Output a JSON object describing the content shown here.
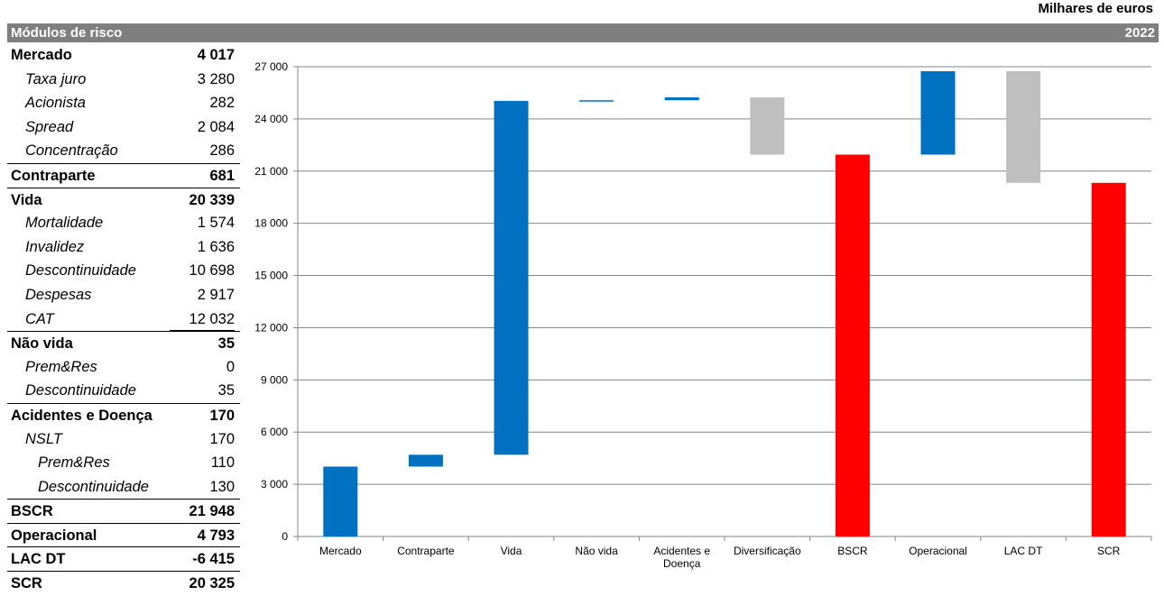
{
  "header": {
    "units": "Milhares de euros",
    "module_title": "Módulos de risco",
    "year": "2022"
  },
  "table": [
    {
      "label": "Mercado",
      "value": "4 017",
      "style": "bold",
      "indent": 0
    },
    {
      "label": "Taxa juro",
      "value": "3 280",
      "style": "italic",
      "indent": 1
    },
    {
      "label": "Acionista",
      "value": "282",
      "style": "italic",
      "indent": 1
    },
    {
      "label": "Spread",
      "value": "2 084",
      "style": "italic",
      "indent": 1
    },
    {
      "label": "Concentração",
      "value": "286",
      "style": "italic",
      "indent": 1
    },
    {
      "label": "Contraparte",
      "value": "681",
      "style": "bold",
      "indent": 0
    },
    {
      "label": "Vida",
      "value": "20 339",
      "style": "bold",
      "indent": 0
    },
    {
      "label": "Mortalidade",
      "value": "1 574",
      "style": "italic",
      "indent": 1
    },
    {
      "label": "Invalidez",
      "value": "1 636",
      "style": "italic",
      "indent": 1
    },
    {
      "label": "Descontinuidade",
      "value": "10 698",
      "style": "italic",
      "indent": 1
    },
    {
      "label": "Despesas",
      "value": "2 917",
      "style": "italic",
      "indent": 1
    },
    {
      "label": "CAT",
      "value": "12 032",
      "style": "italic",
      "indent": 1
    },
    {
      "label": "Não vida",
      "value": "35",
      "style": "bold",
      "indent": 0
    },
    {
      "label": "Prem&Res",
      "value": "0",
      "style": "italic",
      "indent": 1
    },
    {
      "label": "Descontinuidade",
      "value": "35",
      "style": "italic",
      "indent": 1
    },
    {
      "label": "Acidentes e Doença",
      "value": "170",
      "style": "bold",
      "indent": 0
    },
    {
      "label": "NSLT",
      "value": "170",
      "style": "italic",
      "indent": 1
    },
    {
      "label": "Prem&Res",
      "value": "110",
      "style": "italic",
      "indent": 2
    },
    {
      "label": "Descontinuidade",
      "value": "130",
      "style": "italic",
      "indent": 2
    },
    {
      "label": "BSCR",
      "value": "21 948",
      "style": "bold",
      "indent": 0
    },
    {
      "label": "Operacional",
      "value": "4 793",
      "style": "bold",
      "indent": 0
    },
    {
      "label": "LAC DT",
      "value": "-6 415",
      "style": "bold",
      "indent": 0
    },
    {
      "label": "SCR",
      "value": "20 325",
      "style": "bold",
      "indent": 0
    }
  ],
  "chart_data": {
    "type": "bar",
    "subtype": "waterfall",
    "categories": [
      "Mercado",
      "Contraparte",
      "Vida",
      "Não vida",
      "Acidentes e Doença",
      "Diversificação",
      "BSCR",
      "Operacional",
      "LAC DT",
      "SCR"
    ],
    "bars": [
      {
        "low": 0,
        "high": 4017,
        "color": "#0070c0"
      },
      {
        "low": 4017,
        "high": 4698,
        "color": "#0070c0"
      },
      {
        "low": 4698,
        "high": 25037,
        "color": "#0070c0"
      },
      {
        "low": 25037,
        "high": 25072,
        "color": "#0070c0"
      },
      {
        "low": 25072,
        "high": 25242,
        "color": "#0070c0"
      },
      {
        "low": 21948,
        "high": 25242,
        "color": "#bfbfbf"
      },
      {
        "low": 0,
        "high": 21948,
        "color": "#ff0000"
      },
      {
        "low": 21948,
        "high": 26741,
        "color": "#0070c0"
      },
      {
        "low": 20326,
        "high": 26741,
        "color": "#bfbfbf"
      },
      {
        "low": 0,
        "high": 20325,
        "color": "#ff0000"
      }
    ],
    "yticks": [
      0,
      3000,
      6000,
      9000,
      12000,
      15000,
      18000,
      21000,
      24000,
      27000
    ],
    "ytick_labels": [
      "0",
      "3 000",
      "6 000",
      "9 000",
      "12 000",
      "15 000",
      "18 000",
      "21 000",
      "24 000",
      "27 000"
    ],
    "ylim": [
      0,
      27000
    ],
    "grid": true,
    "colors": {
      "increase": "#0070c0",
      "decrease": "#bfbfbf",
      "total": "#ff0000"
    }
  }
}
